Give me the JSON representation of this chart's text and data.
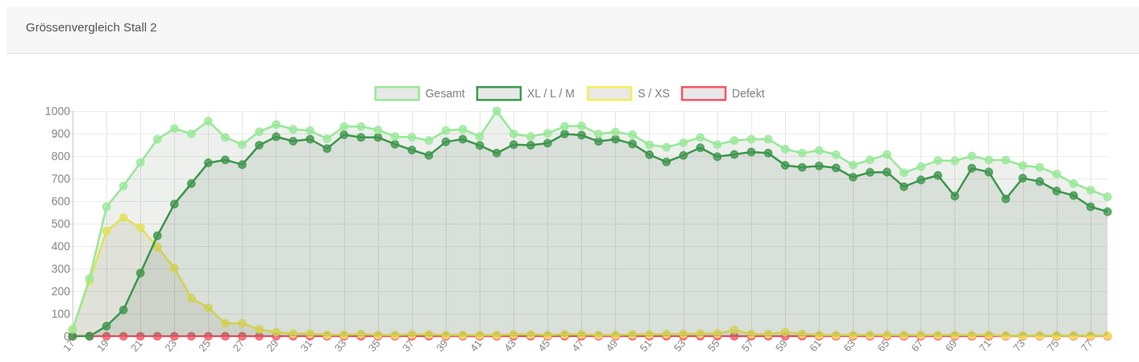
{
  "chart_data": {
    "type": "area",
    "title": "Grössenvergleich Stall 2",
    "categories": [
      "17",
      null,
      "19",
      null,
      "21",
      null,
      "23",
      null,
      "25",
      null,
      "27",
      null,
      "29",
      null,
      "31",
      null,
      "33",
      null,
      "35",
      null,
      "37",
      null,
      "39",
      null,
      "41",
      null,
      "43",
      null,
      "45",
      null,
      "47",
      null,
      "49",
      null,
      "51",
      null,
      "53",
      null,
      "55",
      null,
      "57",
      null,
      "59",
      null,
      "61",
      null,
      "63",
      null,
      "65",
      null,
      "67",
      null,
      "69",
      null,
      "71",
      null,
      "73",
      null,
      "75",
      null,
      "77",
      null
    ],
    "series": [
      {
        "name": "Gesamt",
        "color": "#98e898",
        "values": [
          30,
          256,
          575,
          667,
          771,
          875,
          922,
          899,
          955,
          883,
          851,
          908,
          940,
          919,
          913,
          877,
          931,
          931,
          916,
          887,
          884,
          869,
          913,
          919,
          887,
          1000,
          898,
          887,
          901,
          932,
          934,
          898,
          907,
          895,
          850,
          839,
          859,
          883,
          851,
          869,
          875,
          875,
          831,
          813,
          825,
          806,
          760,
          783,
          807,
          726,
          753,
          780,
          779,
          800,
          783,
          782,
          758,
          750,
          720,
          678,
          649,
          619
        ]
      },
      {
        "name": "XL / L / M",
        "color": "#3c9c4c",
        "values": [
          0,
          0,
          45,
          117,
          280,
          446,
          587,
          678,
          770,
          783,
          762,
          848,
          886,
          866,
          875,
          833,
          895,
          883,
          883,
          853,
          827,
          803,
          863,
          875,
          847,
          813,
          851,
          848,
          857,
          898,
          893,
          865,
          875,
          854,
          806,
          774,
          803,
          837,
          797,
          807,
          818,
          813,
          759,
          750,
          756,
          747,
          706,
          728,
          729,
          664,
          694,
          714,
          622,
          746,
          729,
          610,
          702,
          687,
          645,
          625,
          575,
          553
        ]
      },
      {
        "name": "S / XS",
        "color": "#f4ee5a",
        "values": [
          30,
          245,
          468,
          527,
          482,
          396,
          303,
          169,
          127,
          57,
          57,
          30,
          18,
          12,
          12,
          6,
          6,
          10,
          5,
          5,
          8,
          8,
          5,
          5,
          5,
          5,
          8,
          8,
          5,
          8,
          8,
          5,
          5,
          8,
          8,
          10,
          10,
          12,
          12,
          28,
          10,
          10,
          18,
          10,
          5,
          5,
          5,
          5,
          5,
          5,
          5,
          5,
          5,
          5,
          5,
          3,
          3,
          3,
          3,
          3,
          3,
          3
        ]
      },
      {
        "name": "Defekt",
        "type": "line",
        "color": "#f85468",
        "values": [
          0,
          0,
          0,
          0,
          0,
          0,
          0,
          0,
          0,
          0,
          0,
          0,
          0,
          0,
          0,
          0,
          0,
          0,
          0,
          0,
          0,
          0,
          0,
          0,
          0,
          0,
          0,
          0,
          0,
          0,
          0,
          0,
          0,
          0,
          0,
          0,
          0,
          0,
          0,
          0,
          0,
          0,
          0,
          0,
          0,
          0,
          0,
          0,
          0,
          0,
          0,
          0,
          0,
          0,
          0,
          0,
          0,
          0,
          0,
          0,
          0,
          0
        ]
      }
    ],
    "ylim": [
      0,
      1000
    ],
    "yticks": [
      0,
      100,
      200,
      300,
      400,
      500,
      600,
      700,
      800,
      900,
      1000
    ],
    "grid": true,
    "legend": "top",
    "marker": "circle"
  }
}
